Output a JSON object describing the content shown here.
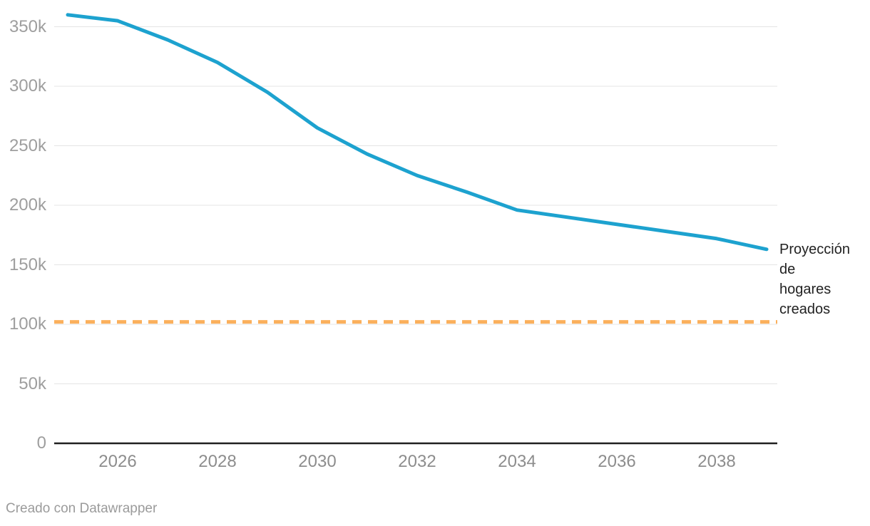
{
  "chart_data": {
    "type": "line",
    "x": [
      2025,
      2026,
      2027,
      2028,
      2029,
      2030,
      2031,
      2032,
      2033,
      2034,
      2035,
      2036,
      2037,
      2038,
      2039
    ],
    "series": [
      {
        "name": "Proyección de hogares creados",
        "values": [
          360000,
          355000,
          339000,
          320000,
          295000,
          265000,
          243000,
          225000,
          211000,
          196000,
          190000,
          184000,
          178000,
          172000,
          163000
        ]
      }
    ],
    "reference_line": {
      "value": 102000,
      "style": "dashed"
    },
    "y_ticks": [
      {
        "value": 0,
        "label": "0"
      },
      {
        "value": 50000,
        "label": "50k"
      },
      {
        "value": 100000,
        "label": "100k"
      },
      {
        "value": 150000,
        "label": "150k"
      },
      {
        "value": 200000,
        "label": "200k"
      },
      {
        "value": 250000,
        "label": "250k"
      },
      {
        "value": 300000,
        "label": "300k"
      },
      {
        "value": 350000,
        "label": "350k"
      }
    ],
    "x_ticks": [
      {
        "value": 2026,
        "label": "2026"
      },
      {
        "value": 2028,
        "label": "2028"
      },
      {
        "value": 2030,
        "label": "2030"
      },
      {
        "value": 2032,
        "label": "2032"
      },
      {
        "value": 2034,
        "label": "2034"
      },
      {
        "value": 2036,
        "label": "2036"
      },
      {
        "value": 2038,
        "label": "2038"
      }
    ],
    "xlim": [
      2025,
      2039
    ],
    "ylim": [
      0,
      370000
    ],
    "grid": "horizontal",
    "legend_position": "none",
    "title": "",
    "xlabel": "",
    "ylabel": ""
  },
  "annotation": {
    "text": "Proyección\nde\nhogares\ncreados"
  },
  "footer": {
    "attribution": "Creado con Datawrapper"
  },
  "colors": {
    "line": "#1da2cf",
    "reference": "#fbb05c",
    "grid": "#e4e4e4",
    "axis": "#202020",
    "y_tick_text": "#9e9e9e",
    "x_tick_text": "#8d8d8d",
    "annotation_text": "#222222",
    "footer_text": "#9b9b9b"
  }
}
